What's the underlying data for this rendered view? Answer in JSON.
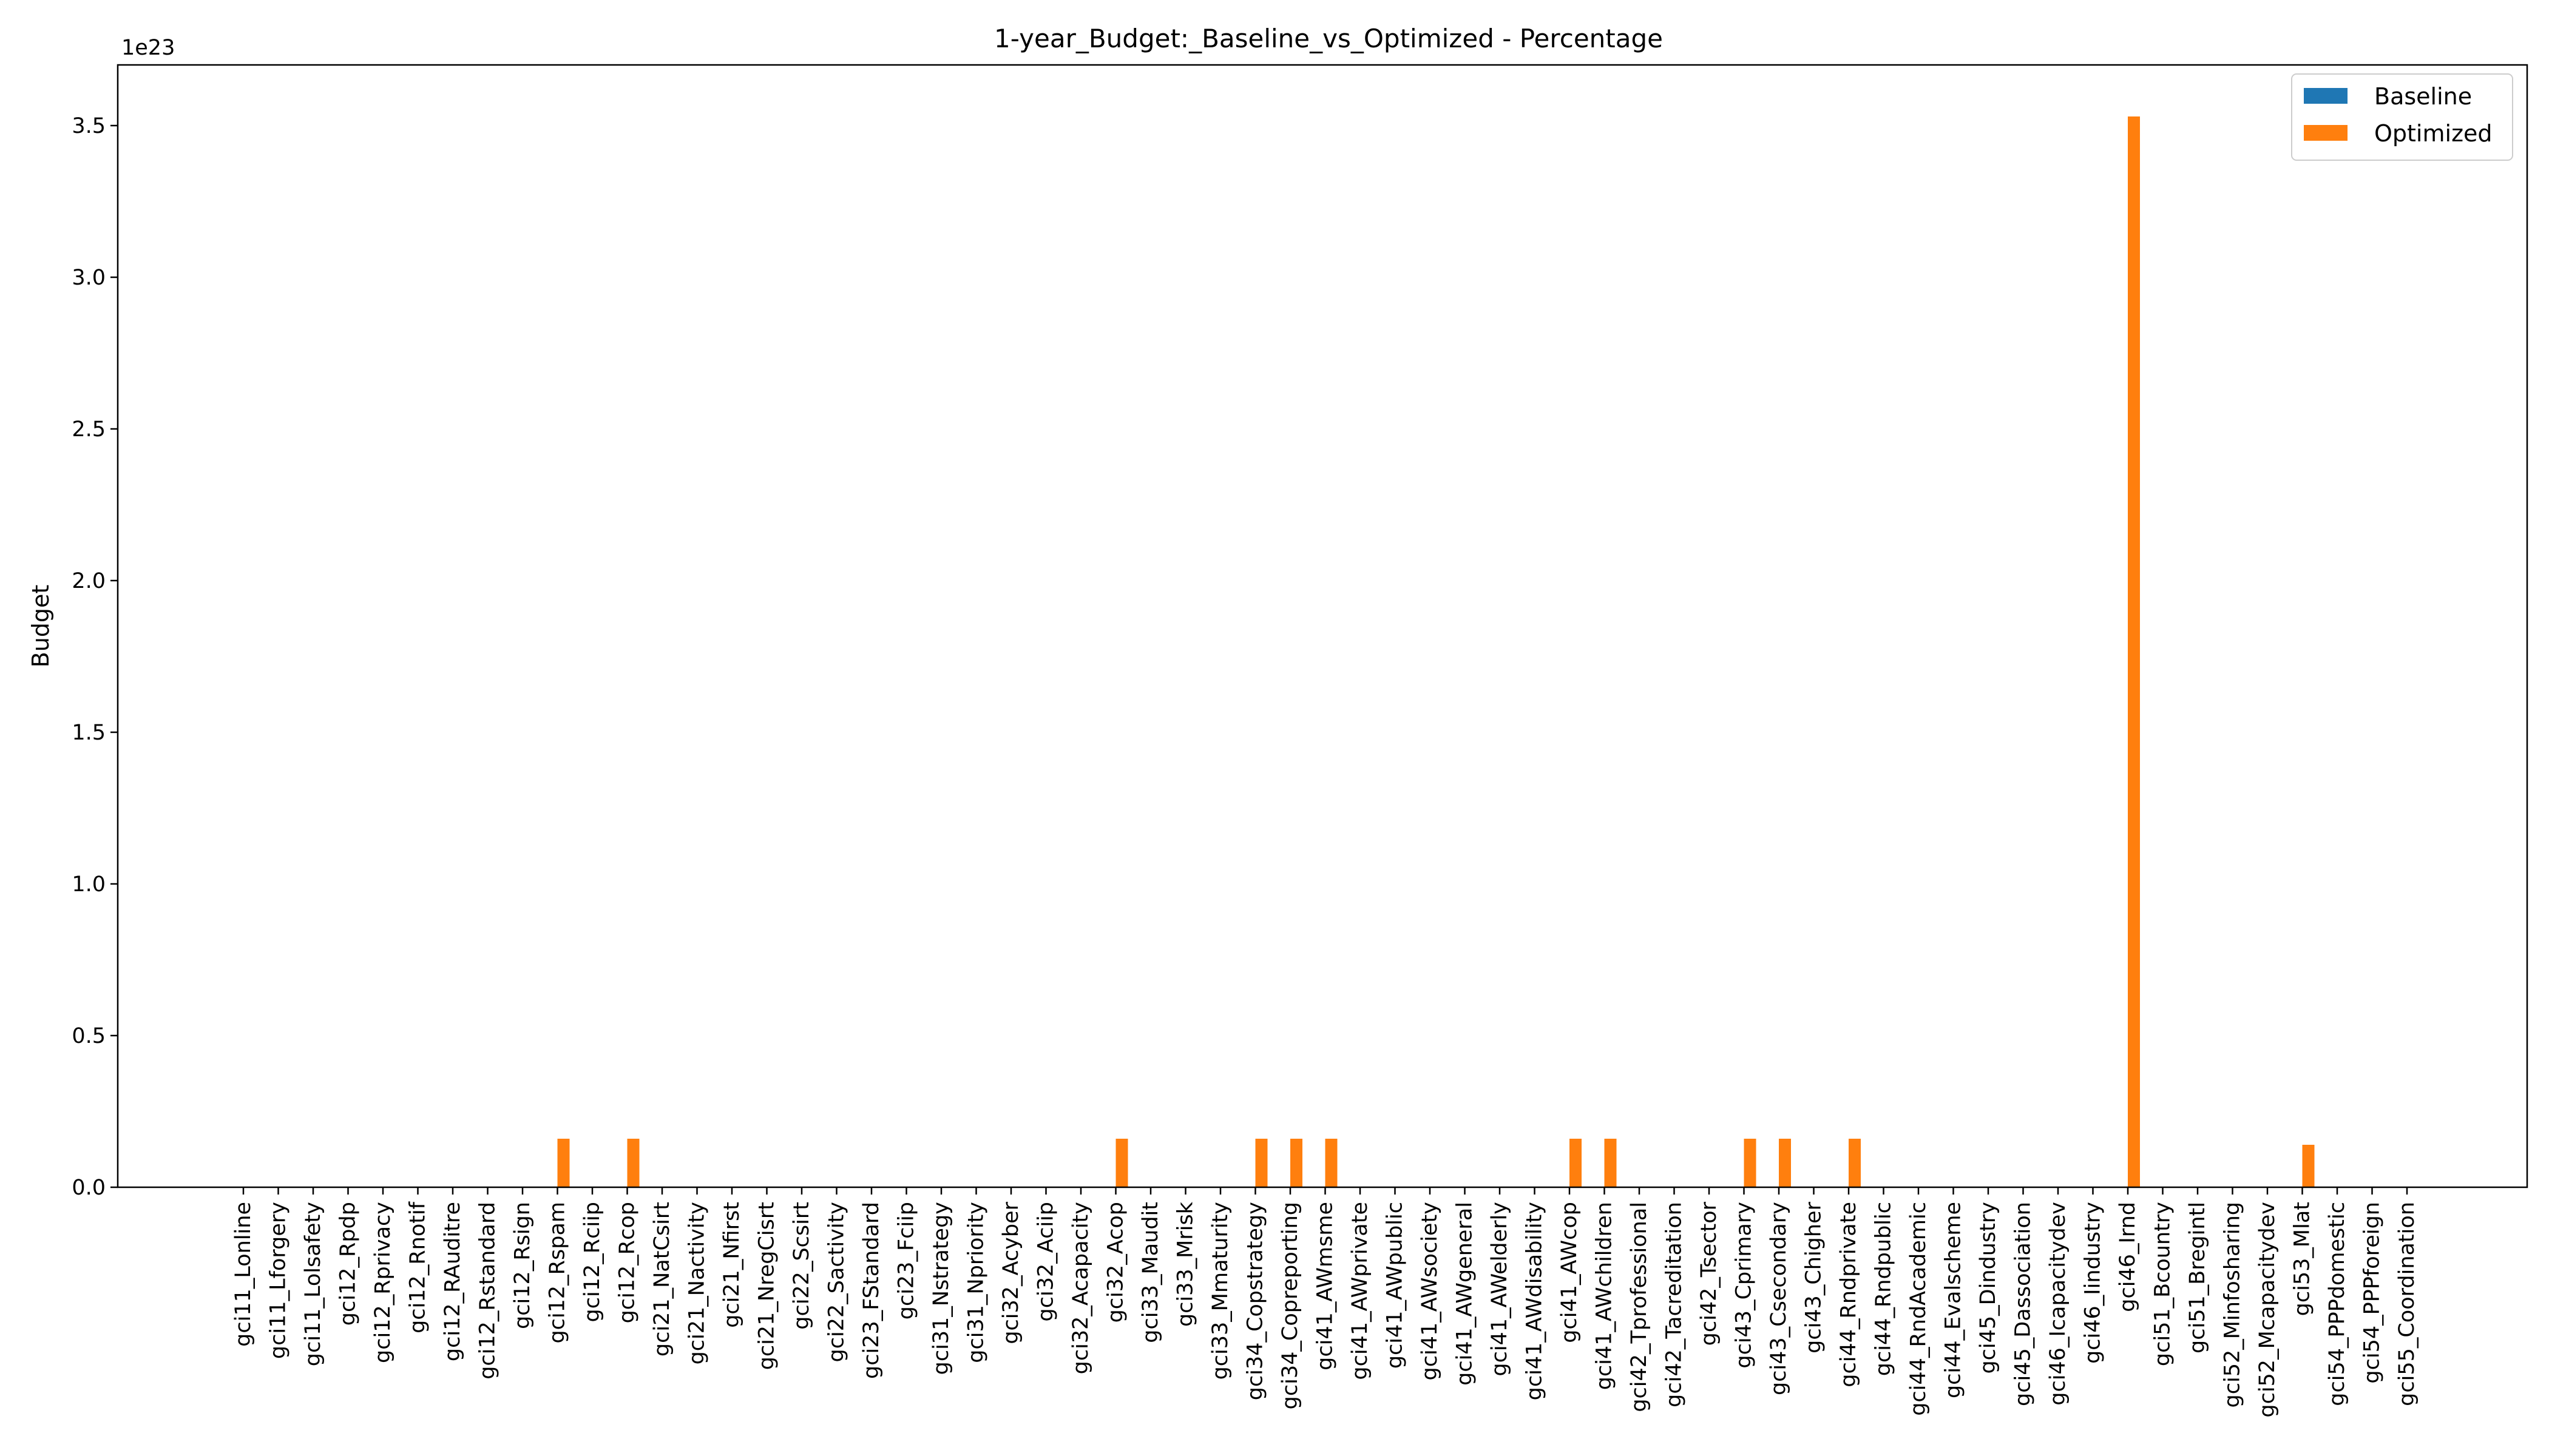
{
  "chart_data": {
    "type": "bar",
    "title": "1-year_Budget:_Baseline_vs_Optimized - Percentage",
    "xlabel": "",
    "ylabel": "Budget",
    "offset_text": "1e23",
    "ylim": [
      0,
      3.7
    ],
    "yticks": [
      0.0,
      0.5,
      1.0,
      1.5,
      2.0,
      2.5,
      3.0,
      3.5
    ],
    "ytick_labels": [
      "0.0",
      "0.5",
      "1.0",
      "1.5",
      "2.0",
      "2.5",
      "3.0",
      "3.5"
    ],
    "grid": false,
    "legend_position": "top-right",
    "categories": [
      "gci11_Lonline",
      "gci11_Lforgery",
      "gci11_Lolsafety",
      "gci12_Rpdp",
      "gci12_Rprivacy",
      "gci12_Rnotif",
      "gci12_RAuditre",
      "gci12_Rstandard",
      "gci12_Rsign",
      "gci12_Rspam",
      "gci12_Rciip",
      "gci12_Rcop",
      "gci21_NatCsirt",
      "gci21_Nactivity",
      "gci21_Nfirst",
      "gci21_NregCisrt",
      "gci22_Scsirt",
      "gci22_Sactivity",
      "gci23_FStandard",
      "gci23_Fciip",
      "gci31_Nstrategy",
      "gci31_Npriority",
      "gci32_Acyber",
      "gci32_Aciip",
      "gci32_Acapacity",
      "gci32_Acop",
      "gci33_Maudit",
      "gci33_Mrisk",
      "gci33_Mmaturity",
      "gci34_Copstrategy",
      "gci34_Copreporting",
      "gci41_AWmsme",
      "gci41_AWprivate",
      "gci41_AWpublic",
      "gci41_AWsociety",
      "gci41_AWgeneral",
      "gci41_AWelderly",
      "gci41_AWdisability",
      "gci41_AWcop",
      "gci41_AWchildren",
      "gci42_Tprofessional",
      "gci42_Tacreditation",
      "gci42_Tsector",
      "gci43_Cprimary",
      "gci43_Csecondary",
      "gci43_Chigher",
      "gci44_Rndprivate",
      "gci44_Rndpublic",
      "gci44_RndAcademic",
      "gci44_Evalscheme",
      "gci45_Dindustry",
      "gci45_Dassociation",
      "gci46_Icapacitydev",
      "gci46_Iindustry",
      "gci46_Irnd",
      "gci51_Bcountry",
      "gci51_Bregintl",
      "gci52_Minfosharing",
      "gci52_Mcapacitydev",
      "gci53_Mlat",
      "gci54_PPPdomestic",
      "gci54_PPPforeign",
      "gci55_Coordination"
    ],
    "series": [
      {
        "name": "Baseline",
        "color": "#1f77b4",
        "values": [
          0,
          0,
          0,
          0,
          0,
          0,
          0,
          0,
          0,
          0,
          0,
          0,
          0,
          0,
          0,
          0,
          0,
          0,
          0,
          0,
          0,
          0,
          0,
          0,
          0,
          0,
          0,
          0,
          0,
          0,
          0,
          0,
          0,
          0,
          0,
          0,
          0,
          0,
          0,
          0,
          0,
          0,
          0,
          0,
          0,
          0,
          0,
          0,
          0,
          0,
          0,
          0,
          0,
          0,
          0,
          0,
          0,
          0,
          0,
          0,
          0,
          0,
          0
        ]
      },
      {
        "name": "Optimized",
        "color": "#ff7f0e",
        "values": [
          0,
          0,
          0,
          0,
          0,
          0,
          0,
          0,
          0,
          0.16,
          0,
          0.16,
          0,
          0,
          0,
          0,
          0,
          0,
          0,
          0,
          0,
          0,
          0,
          0,
          0,
          0.16,
          0,
          0,
          0,
          0.16,
          0.16,
          0.16,
          0,
          0,
          0,
          0,
          0,
          0,
          0.16,
          0.16,
          0,
          0,
          0,
          0.16,
          0.16,
          0,
          0.16,
          0,
          0,
          0,
          0,
          0,
          0,
          0,
          3.53,
          0,
          0,
          0,
          0,
          0.14,
          0,
          0,
          0
        ]
      }
    ]
  }
}
